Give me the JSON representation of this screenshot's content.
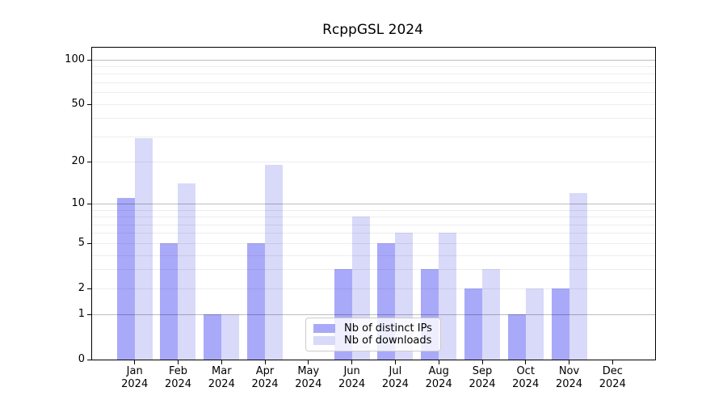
{
  "title": "RcppGSL 2024",
  "chart_data": {
    "type": "bar",
    "title": "RcppGSL 2024",
    "months": [
      "Jan",
      "Feb",
      "Mar",
      "Apr",
      "May",
      "Jun",
      "Jul",
      "Aug",
      "Sep",
      "Oct",
      "Nov",
      "Dec"
    ],
    "year_label": "2024",
    "categories": [
      "Jan 2024",
      "Feb 2024",
      "Mar 2024",
      "Apr 2024",
      "May 2024",
      "Jun 2024",
      "Jul 2024",
      "Aug 2024",
      "Sep 2024",
      "Oct 2024",
      "Nov 2024",
      "Dec 2024"
    ],
    "series": [
      {
        "name": "Nb of distinct IPs",
        "color": "#a9a9f9",
        "values": [
          11,
          5,
          1,
          5,
          0,
          3,
          5,
          3,
          2,
          1,
          2,
          0
        ]
      },
      {
        "name": "Nb of downloads",
        "color": "#d9d9f9",
        "values": [
          29,
          14,
          1,
          19,
          0,
          8,
          6,
          6,
          3,
          2,
          12,
          0
        ]
      }
    ],
    "xlabel": "",
    "ylabel": "",
    "y_scale": "log1p",
    "ylim": [
      0,
      120
    ],
    "y_ticks": [
      0,
      1,
      2,
      5,
      10,
      20,
      50,
      100
    ],
    "grid_major": [
      1,
      10,
      100
    ],
    "grid_minor": [
      2,
      3,
      4,
      5,
      6,
      7,
      8,
      9,
      20,
      30,
      40,
      50,
      60,
      70,
      80,
      90
    ],
    "grid_on": true,
    "legend_position": "lower-center"
  },
  "colors": {
    "background": "#ffffff",
    "axis": "#000000",
    "grid_major": "#bdbdbd",
    "grid_minor": "#ededed",
    "legend_border": "#cccccc"
  }
}
